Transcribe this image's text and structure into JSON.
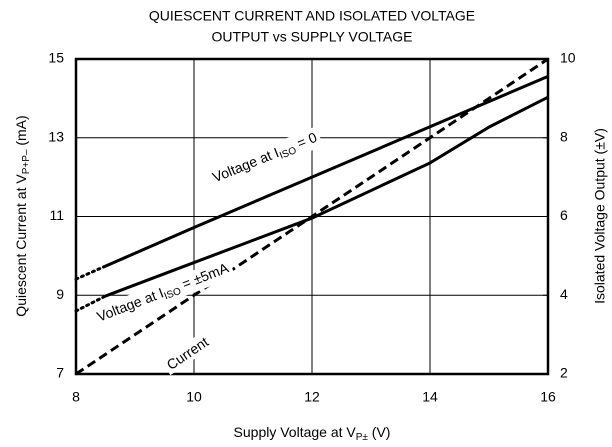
{
  "chart_data": {
    "type": "line",
    "title": [
      "QUIESCENT CURRENT AND ISOLATED VOLTAGE",
      "OUTPUT vs SUPPLY VOLTAGE"
    ],
    "xlabel": [
      "Supply Voltage at V",
      "P±",
      " (V)"
    ],
    "ylabel": [
      "Quiescent Current at V",
      "P+P–",
      " (mA)"
    ],
    "y2label": "Isolated Voltage Output (±V)",
    "xlim": [
      8,
      16
    ],
    "xticks": [
      8,
      10,
      12,
      14,
      16
    ],
    "ylim": [
      7,
      15
    ],
    "yticks": [
      7,
      9,
      11,
      13,
      15
    ],
    "y2lim": [
      2,
      10
    ],
    "y2ticks": [
      2,
      4,
      6,
      8,
      10
    ],
    "grid": true,
    "series": [
      {
        "label": [
          "Voltage at I",
          "ISO",
          " = 0"
        ],
        "color": "#000000",
        "axis": "y2",
        "x": [
          8,
          8.5,
          10,
          12,
          14,
          16
        ],
        "values": [
          4.41,
          4.74,
          5.72,
          7.0,
          8.28,
          9.56
        ]
      },
      {
        "label": [
          "Voltage at I",
          "ISO",
          " = ±5mA"
        ],
        "color": "#000000",
        "axis": "y2",
        "x": [
          8,
          8.5,
          10,
          12,
          14,
          15,
          16
        ],
        "values": [
          3.6,
          3.98,
          4.83,
          5.96,
          7.36,
          8.27,
          9.03
        ]
      },
      {
        "label": [
          "Current"
        ],
        "color": "#000000",
        "axis": "y",
        "x": [
          8,
          10,
          12,
          14,
          16
        ],
        "values": [
          7,
          9,
          11,
          13,
          15
        ]
      }
    ]
  }
}
